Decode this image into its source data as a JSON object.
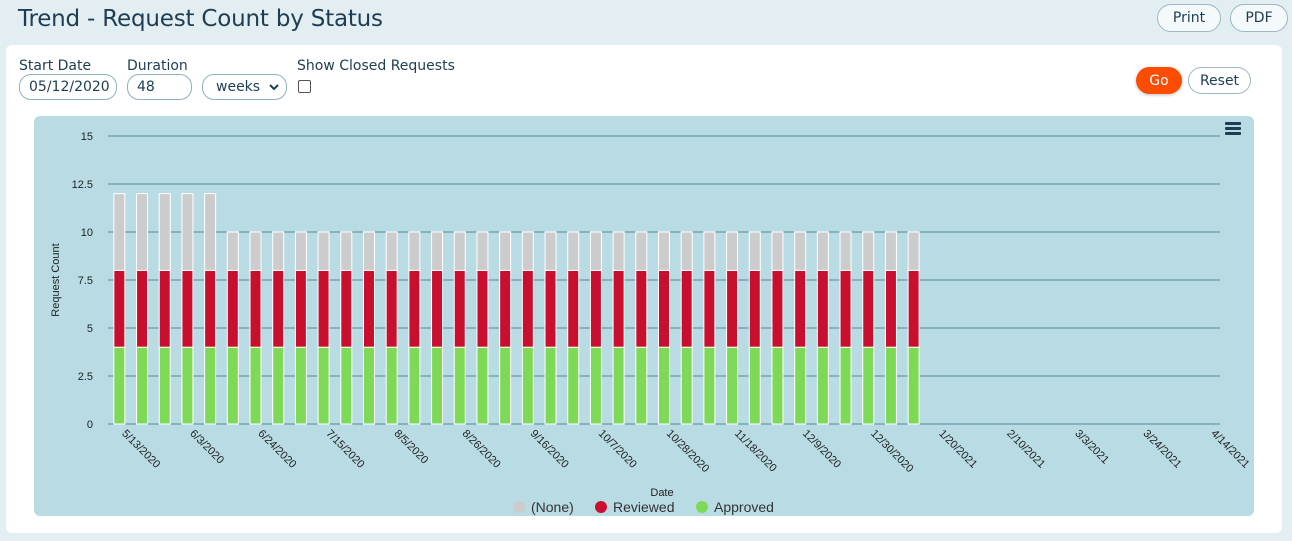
{
  "header": {
    "title": "Trend - Request Count by Status",
    "print_label": "Print",
    "pdf_label": "PDF"
  },
  "filters": {
    "start_date_label": "Start Date",
    "start_date_value": "05/12/2020",
    "duration_label": "Duration",
    "duration_value": "48",
    "duration_unit": "weeks",
    "show_closed_label": "Show Closed Requests",
    "show_closed_checked": false,
    "go_label": "Go",
    "reset_label": "Reset"
  },
  "colors": {
    "none": "#cccccc",
    "reviewed": "#c8102e",
    "approved": "#7ed957",
    "accent": "#fc4c02",
    "chart_bg": "#b8dbe4"
  },
  "icons": {
    "chart_menu": "hamburger-menu-icon",
    "duration_select": "chevron-down-icon"
  },
  "chart_data": {
    "type": "bar",
    "stacked": true,
    "title": "",
    "xlabel": "Date",
    "ylabel": "Request Count",
    "ylim": [
      0,
      15
    ],
    "yticks": [
      "0",
      "2.5",
      "5",
      "7.5",
      "10",
      "12.5",
      "15"
    ],
    "xticks": [
      "5/13/2020",
      "6/3/2020",
      "6/24/2020",
      "7/15/2020",
      "8/5/2020",
      "8/26/2020",
      "9/16/2020",
      "10/7/2020",
      "10/28/2020",
      "11/18/2020",
      "12/9/2020",
      "12/30/2020",
      "1/20/2021",
      "2/10/2021",
      "3/3/2021",
      "3/24/2021",
      "4/14/2021"
    ],
    "x_start": "5/13/2020",
    "periods": 49,
    "legend_position": "bottom",
    "grid": true,
    "series": [
      {
        "name": "(None)",
        "values": [
          4,
          4,
          4,
          4,
          4,
          2,
          2,
          2,
          2,
          2,
          2,
          2,
          2,
          2,
          2,
          2,
          2,
          2,
          2,
          2,
          2,
          2,
          2,
          2,
          2,
          2,
          2,
          2,
          2,
          2,
          2,
          2,
          2,
          2,
          2,
          2,
          0,
          0,
          0,
          0,
          0,
          0,
          0,
          0,
          0,
          0,
          0,
          0,
          0
        ]
      },
      {
        "name": "Reviewed",
        "values": [
          4,
          4,
          4,
          4,
          4,
          4,
          4,
          4,
          4,
          4,
          4,
          4,
          4,
          4,
          4,
          4,
          4,
          4,
          4,
          4,
          4,
          4,
          4,
          4,
          4,
          4,
          4,
          4,
          4,
          4,
          4,
          4,
          4,
          4,
          4,
          4,
          0,
          0,
          0,
          0,
          0,
          0,
          0,
          0,
          0,
          0,
          0,
          0,
          0
        ]
      },
      {
        "name": "Approved",
        "values": [
          4,
          4,
          4,
          4,
          4,
          4,
          4,
          4,
          4,
          4,
          4,
          4,
          4,
          4,
          4,
          4,
          4,
          4,
          4,
          4,
          4,
          4,
          4,
          4,
          4,
          4,
          4,
          4,
          4,
          4,
          4,
          4,
          4,
          4,
          4,
          4,
          0,
          0,
          0,
          0,
          0,
          0,
          0,
          0,
          0,
          0,
          0,
          0,
          0
        ]
      }
    ]
  }
}
